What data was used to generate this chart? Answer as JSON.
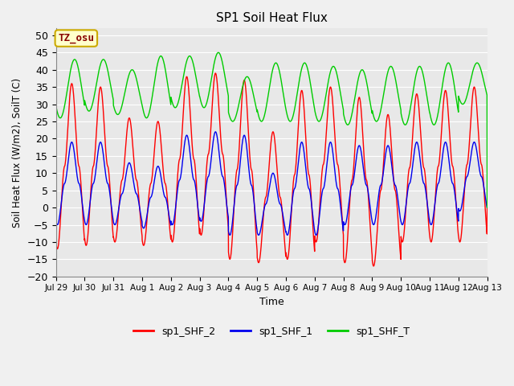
{
  "title": "SP1 Soil Heat Flux",
  "xlabel": "Time",
  "ylabel": "Soil Heat Flux (W/m2), SoilT (C)",
  "ylim": [
    -20,
    52
  ],
  "yticks": [
    -20,
    -15,
    -10,
    -5,
    0,
    5,
    10,
    15,
    20,
    25,
    30,
    35,
    40,
    45,
    50
  ],
  "bg_color": "#e8e8e8",
  "plot_bg_color": "#e8e8e8",
  "grid_color": "#ffffff",
  "annotation_text": "TZ_osu",
  "annotation_box_color": "#ffffcc",
  "annotation_box_edge": "#ccaa00",
  "legend": [
    "sp1_SHF_2",
    "sp1_SHF_1",
    "sp1_SHF_T"
  ],
  "colors": {
    "shf2": "#ff0000",
    "shf1": "#0000ee",
    "shfT": "#00cc00"
  },
  "tick_labels": [
    "Jul 29",
    "Jul 30",
    "Jul 31",
    "Aug 1",
    "Aug 2",
    "Aug 3",
    "Aug 4",
    "Aug 5",
    "Aug 6",
    "Aug 7",
    "Aug 8",
    "Aug 9",
    "Aug 10",
    "Aug 11",
    "Aug 12",
    "Aug 13"
  ],
  "shf2_peaks": [
    36,
    35,
    26,
    25,
    38,
    39,
    37,
    22,
    34,
    35,
    32,
    27,
    33,
    34,
    35
  ],
  "shf2_troughs": [
    -12,
    -11,
    -10,
    -11,
    -10,
    -8,
    -15,
    -16,
    -15,
    -10,
    -16,
    -17,
    -10,
    -10,
    -10
  ],
  "shf1_peaks": [
    19,
    19,
    13,
    12,
    21,
    22,
    21,
    10,
    19,
    19,
    18,
    18,
    19,
    19,
    19
  ],
  "shf1_troughs": [
    -5,
    -5,
    -5,
    -6,
    -5,
    -4,
    -8,
    -8,
    -8,
    -8,
    -5,
    -5,
    -5,
    -5,
    -1
  ],
  "shfT_peaks": [
    43,
    43,
    40,
    44,
    44,
    45,
    38,
    42,
    42,
    41,
    40,
    41,
    41,
    42,
    42
  ],
  "shfT_troughs": [
    26,
    28,
    27,
    26,
    29,
    29,
    25,
    25,
    25,
    25,
    24,
    25,
    24,
    24,
    30
  ]
}
